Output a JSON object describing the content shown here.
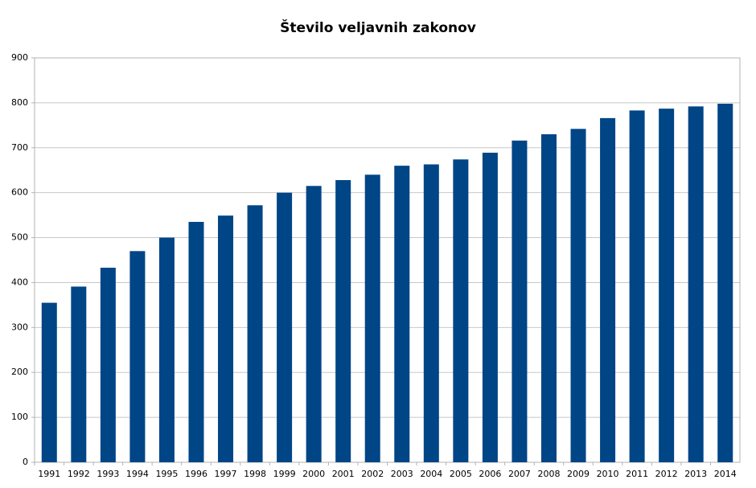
{
  "chart_data": {
    "type": "bar",
    "title": "Število veljavnih zakonov",
    "categories": [
      "1991",
      "1992",
      "1993",
      "1994",
      "1995",
      "1996",
      "1997",
      "1998",
      "1999",
      "2000",
      "2001",
      "2002",
      "2003",
      "2004",
      "2005",
      "2006",
      "2007",
      "2008",
      "2009",
      "2010",
      "2011",
      "2012",
      "2013",
      "2014"
    ],
    "values": [
      355,
      391,
      433,
      470,
      500,
      535,
      549,
      572,
      600,
      615,
      628,
      640,
      660,
      663,
      674,
      689,
      716,
      730,
      742,
      766,
      783,
      787,
      792,
      798
    ],
    "color": "#004586",
    "ylim": [
      0,
      900
    ],
    "yticks": [
      0,
      100,
      200,
      300,
      400,
      500,
      600,
      700,
      800,
      900
    ],
    "grid": true
  }
}
